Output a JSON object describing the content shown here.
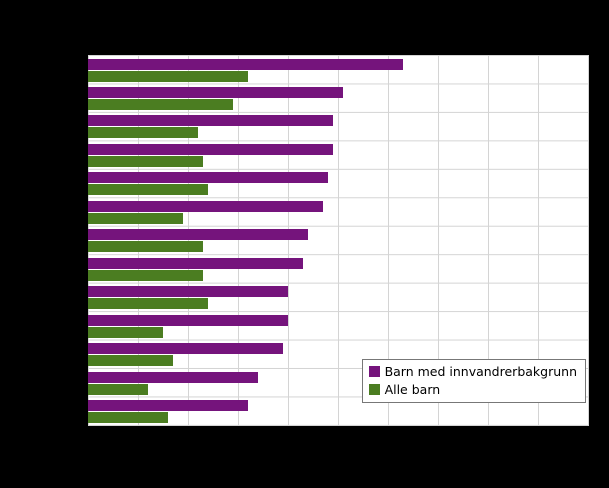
{
  "page": {
    "background_color": "#000000"
  },
  "plot": {
    "background_color": "#ffffff",
    "grid_color": "#d4d4d4"
  },
  "chart_data": {
    "type": "bar",
    "orientation": "horizontal",
    "title": "",
    "xlabel": "",
    "ylabel": "",
    "xlim": [
      0,
      100
    ],
    "grid_step": 10,
    "grid": true,
    "legend_position": "bottom-right",
    "categories": [
      "",
      "",
      "",
      "",
      "",
      "",
      "",
      "",
      "",
      "",
      "",
      "",
      ""
    ],
    "series": [
      {
        "name": "Barn med innvandrerbakgrunn",
        "color": "#75147c",
        "values": [
          63,
          51,
          49,
          49,
          48,
          47,
          44,
          43,
          40,
          40,
          39,
          34,
          32
        ]
      },
      {
        "name": "Alle barn",
        "color": "#4b7d21",
        "values": [
          32,
          29,
          22,
          23,
          24,
          19,
          23,
          23,
          24,
          15,
          17,
          12,
          16
        ]
      }
    ]
  }
}
